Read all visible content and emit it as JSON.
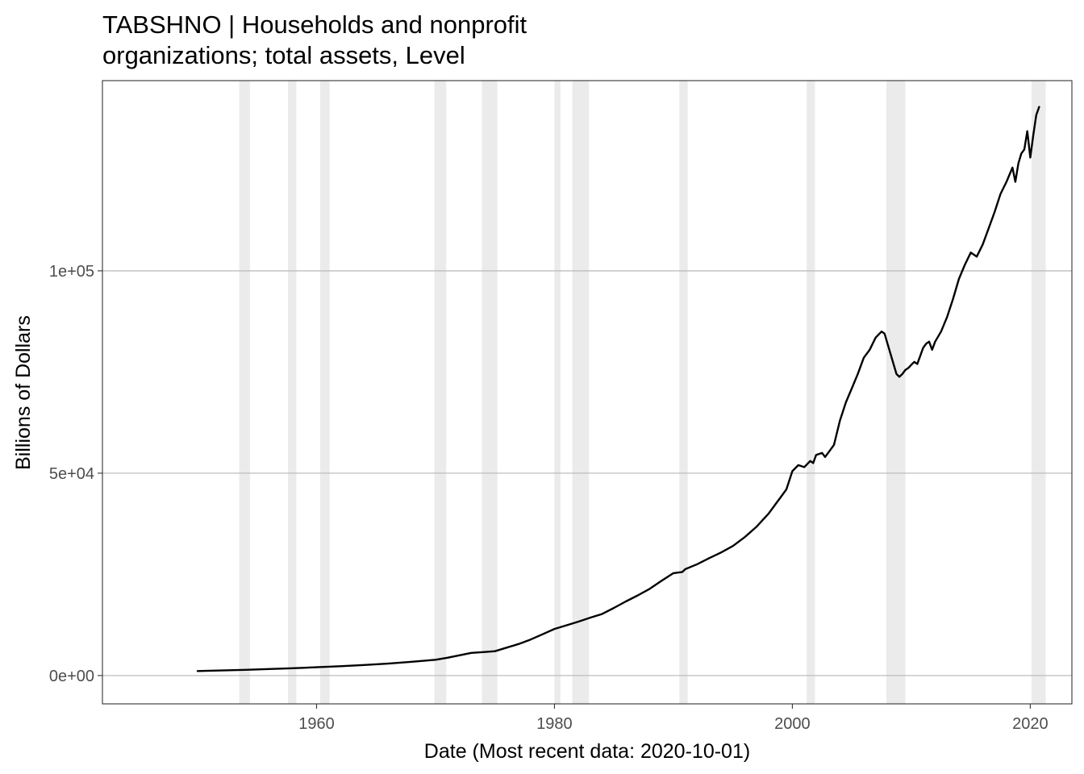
{
  "chart_data": {
    "type": "line",
    "title_lines": [
      "TABSHNO | Households and nonprofit",
      "organizations; total assets, Level"
    ],
    "xlabel": "Date (Most recent data: 2020-10-01)",
    "ylabel": "Billions of Dollars",
    "xlim": [
      1942.0,
      2023.5
    ],
    "ylim": [
      -7000,
      147000
    ],
    "x_ticks": [
      {
        "value": 1960,
        "label": "1960"
      },
      {
        "value": 1980,
        "label": "1980"
      },
      {
        "value": 2000,
        "label": "2000"
      },
      {
        "value": 2020,
        "label": "2020"
      }
    ],
    "y_ticks": [
      {
        "value": 0,
        "label": "0e+00"
      },
      {
        "value": 50000,
        "label": "5e+04"
      },
      {
        "value": 100000,
        "label": "1e+05"
      }
    ],
    "grid": {
      "horizontal_major": true,
      "vertical": false
    },
    "recessions": [
      [
        1953.5,
        1954.4
      ],
      [
        1957.6,
        1958.3
      ],
      [
        1960.3,
        1961.1
      ],
      [
        1969.9,
        1970.9
      ],
      [
        1973.9,
        1975.2
      ],
      [
        1980.0,
        1980.5
      ],
      [
        1981.5,
        1982.9
      ],
      [
        1990.5,
        1991.2
      ],
      [
        2001.2,
        2001.9
      ],
      [
        2007.9,
        2009.5
      ],
      [
        2020.1,
        2021.3
      ]
    ],
    "series": [
      {
        "x": [
          1950.0,
          1952.0,
          1954.0,
          1956.0,
          1958.0,
          1960.0,
          1962.0,
          1964.0,
          1966.0,
          1968.0,
          1970.0,
          1971.0,
          1972.0,
          1973.0,
          1974.0,
          1975.0,
          1976.0,
          1977.0,
          1978.0,
          1979.0,
          1980.0,
          1981.0,
          1982.0,
          1983.0,
          1984.0,
          1985.0,
          1986.0,
          1987.0,
          1988.0,
          1989.0,
          1990.0,
          1990.75,
          1991.0,
          1992.0,
          1993.0,
          1994.0,
          1995.0,
          1996.0,
          1997.0,
          1998.0,
          1998.75,
          1999.0,
          1999.5,
          2000.0,
          2000.5,
          2001.0,
          2001.5,
          2001.75,
          2002.0,
          2002.5,
          2002.75,
          2003.0,
          2003.5,
          2004.0,
          2004.5,
          2005.0,
          2005.5,
          2006.0,
          2006.5,
          2007.0,
          2007.5,
          2007.75,
          2008.0,
          2008.25,
          2008.5,
          2008.75,
          2009.0,
          2009.25,
          2009.5,
          2009.75,
          2010.0,
          2010.25,
          2010.5,
          2010.75,
          2011.0,
          2011.25,
          2011.5,
          2011.75,
          2012.0,
          2012.5,
          2013.0,
          2013.5,
          2014.0,
          2014.5,
          2015.0,
          2015.5,
          2016.0,
          2016.5,
          2017.0,
          2017.5,
          2018.0,
          2018.5,
          2018.75,
          2019.0,
          2019.25,
          2019.5,
          2019.75,
          2020.0,
          2020.25,
          2020.5,
          2020.75
        ],
        "values": [
          1100,
          1250,
          1400,
          1600,
          1800,
          2050,
          2300,
          2600,
          2950,
          3400,
          3900,
          4400,
          5000,
          5600,
          5800,
          6000,
          6900,
          7800,
          8900,
          10200,
          11500,
          12400,
          13300,
          14300,
          15200,
          16700,
          18300,
          19800,
          21400,
          23400,
          25300,
          25600,
          26300,
          27500,
          29000,
          30400,
          32000,
          34200,
          36800,
          40000,
          43000,
          44000,
          46000,
          50500,
          52000,
          51500,
          53000,
          52500,
          54500,
          55000,
          54000,
          55000,
          57000,
          63000,
          67500,
          71000,
          74500,
          78500,
          80500,
          83500,
          85000,
          84500,
          82000,
          79500,
          77000,
          74500,
          73800,
          74500,
          75500,
          76000,
          76800,
          77500,
          77000,
          79000,
          81000,
          82000,
          82500,
          80500,
          82500,
          85000,
          88500,
          93000,
          98000,
          101500,
          104500,
          103500,
          106500,
          110500,
          114500,
          119000,
          122000,
          125500,
          122000,
          126500,
          129000,
          130000,
          134500,
          128000,
          133500,
          138500,
          140500
        ]
      }
    ]
  }
}
